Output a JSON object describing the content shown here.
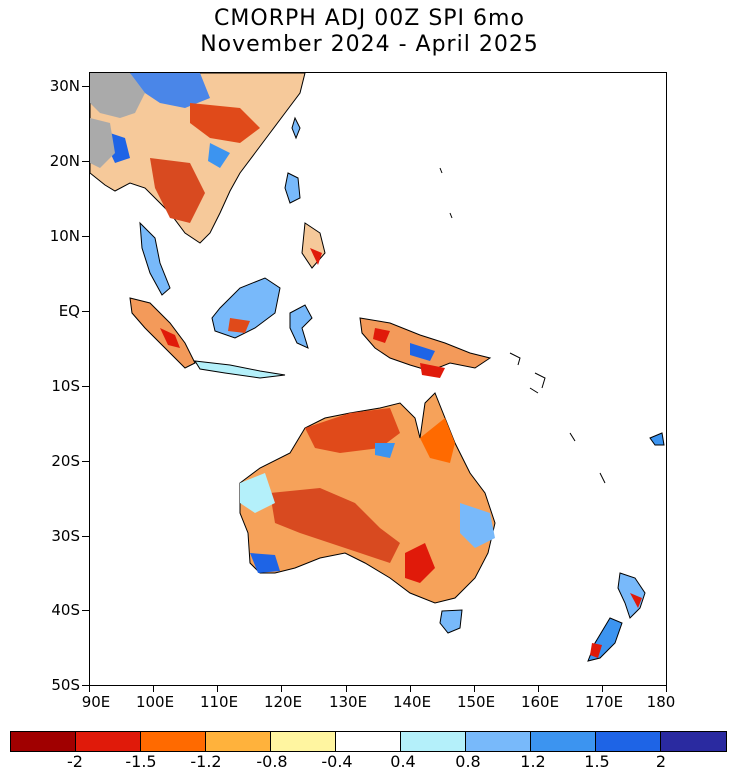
{
  "title": {
    "line1": "CMORPH ADJ 00Z SPI 6mo",
    "line2": "November 2024 - April 2025"
  },
  "axes": {
    "latitude_labels": [
      "30N",
      "20N",
      "10N",
      "EQ",
      "10S",
      "20S",
      "30S",
      "40S",
      "50S"
    ],
    "longitude_labels": [
      "90E",
      "100E",
      "110E",
      "120E",
      "130E",
      "140E",
      "150E",
      "160E",
      "170E",
      "180"
    ]
  },
  "colorbar": {
    "colors": [
      "#a00000",
      "#e01a0a",
      "#ff6a00",
      "#ffb23c",
      "#fff5a0",
      "#ffffff",
      "#b4f0fa",
      "#78b9fa",
      "#3c94f0",
      "#1e64e6",
      "#2a2aa0"
    ],
    "labels": [
      "-2",
      "-1.5",
      "-1.2",
      "-0.8",
      "-0.4",
      "0.4",
      "0.8",
      "1.2",
      "1.5",
      "2"
    ]
  },
  "map_colors": {
    "no_data": "#aaaaaa",
    "coast": "#000000"
  }
}
